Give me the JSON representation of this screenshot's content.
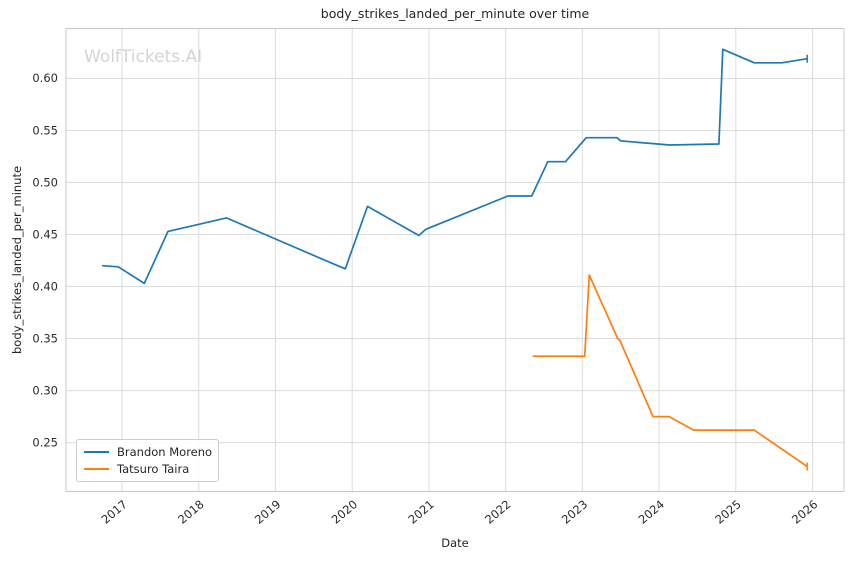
{
  "figure": {
    "watermark": "WolfTickets.AI",
    "watermark_color": "#d4d4d4"
  },
  "chart_data": {
    "type": "line",
    "title": "body_strikes_landed_per_minute over time",
    "xlabel": "Date",
    "ylabel": "body_strikes_landed_per_minute",
    "xlim": [
      2016.27,
      2026.41
    ],
    "ylim": [
      0.203,
      0.648
    ],
    "x_ticks": [
      2017,
      2018,
      2019,
      2020,
      2021,
      2022,
      2023,
      2024,
      2025,
      2026
    ],
    "y_ticks": [
      0.25,
      0.3,
      0.35,
      0.4,
      0.45,
      0.5,
      0.55,
      0.6
    ],
    "grid": true,
    "legend_position": "lower-left",
    "series": [
      {
        "name": "Brandon Moreno",
        "color": "#1f77b4",
        "x": [
          2016.74,
          2016.95,
          2017.29,
          2017.6,
          2018.36,
          2019.78,
          2019.91,
          2020.2,
          2020.87,
          2020.96,
          2022.03,
          2022.34,
          2022.55,
          2022.78,
          2023.05,
          2023.45,
          2023.5,
          2024.14,
          2024.78,
          2024.83,
          2025.24,
          2025.6,
          2025.93
        ],
        "y": [
          0.42,
          0.419,
          0.403,
          0.453,
          0.466,
          0.421,
          0.417,
          0.477,
          0.449,
          0.455,
          0.487,
          0.487,
          0.52,
          0.52,
          0.543,
          0.543,
          0.54,
          0.536,
          0.537,
          0.628,
          0.615,
          0.615,
          0.619
        ]
      },
      {
        "name": "Tatsuro Taira",
        "color": "#ff7f0e",
        "x": [
          2022.35,
          2023.03,
          2023.09,
          2023.46,
          2023.49,
          2023.92,
          2024.13,
          2024.45,
          2025.24,
          2025.93
        ],
        "y": [
          0.333,
          0.333,
          0.411,
          0.35,
          0.348,
          0.275,
          0.275,
          0.262,
          0.262,
          0.227
        ]
      }
    ]
  },
  "colors": {
    "background": "#ffffff",
    "grid": "#dcdcdc",
    "spine": "#c8c8c8",
    "text": "#262626",
    "tick_text": "#2b2b2b"
  }
}
